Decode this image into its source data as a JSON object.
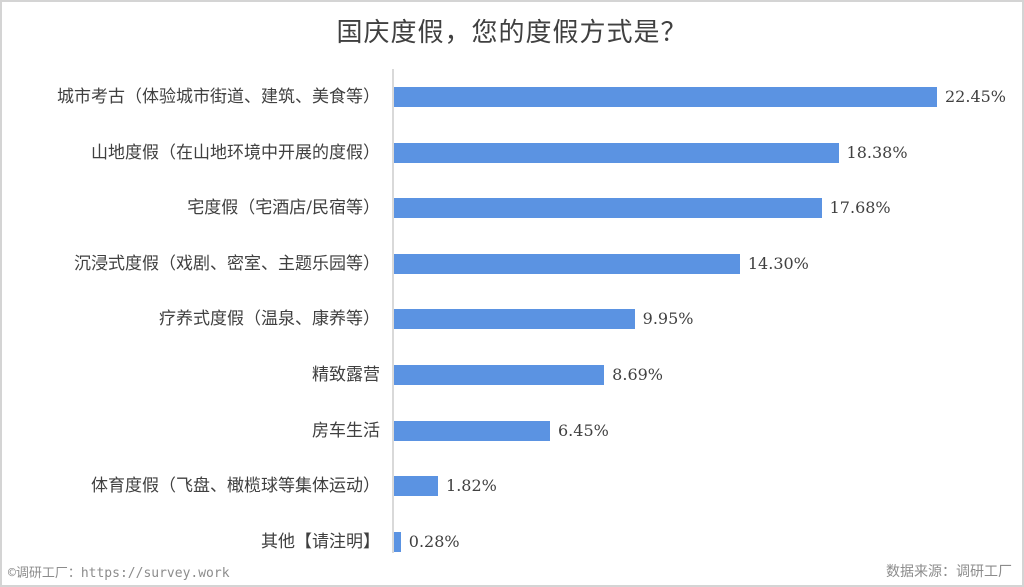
{
  "chart_data": {
    "type": "bar",
    "orientation": "horizontal",
    "title": "国庆度假，您的度假方式是？",
    "categories": [
      "城市考古（体验城市街道、建筑、美食等）",
      "山地度假（在山地环境中开展的度假）",
      "宅度假（宅酒店/民宿等）",
      "沉浸式度假（戏剧、密室、主题乐园等）",
      "疗养式度假（温泉、康养等）",
      "精致露营",
      "房车生活",
      "体育度假（飞盘、橄榄球等集体运动）",
      "其他【请注明】"
    ],
    "values": [
      22.45,
      18.38,
      17.68,
      14.3,
      9.95,
      8.69,
      6.45,
      1.82,
      0.28
    ],
    "value_labels": [
      "22.45%",
      "18.38%",
      "17.68%",
      "14.30%",
      "9.95%",
      "8.69%",
      "6.45%",
      "1.82%",
      "0.28%"
    ],
    "xlabel": "",
    "ylabel": "",
    "unit": "%",
    "grid": false,
    "legend": null,
    "bar_color": "#5b93e2"
  },
  "footer": {
    "copyright": "©调研工厂：https://survey.work",
    "source": "数据来源：调研工厂"
  }
}
